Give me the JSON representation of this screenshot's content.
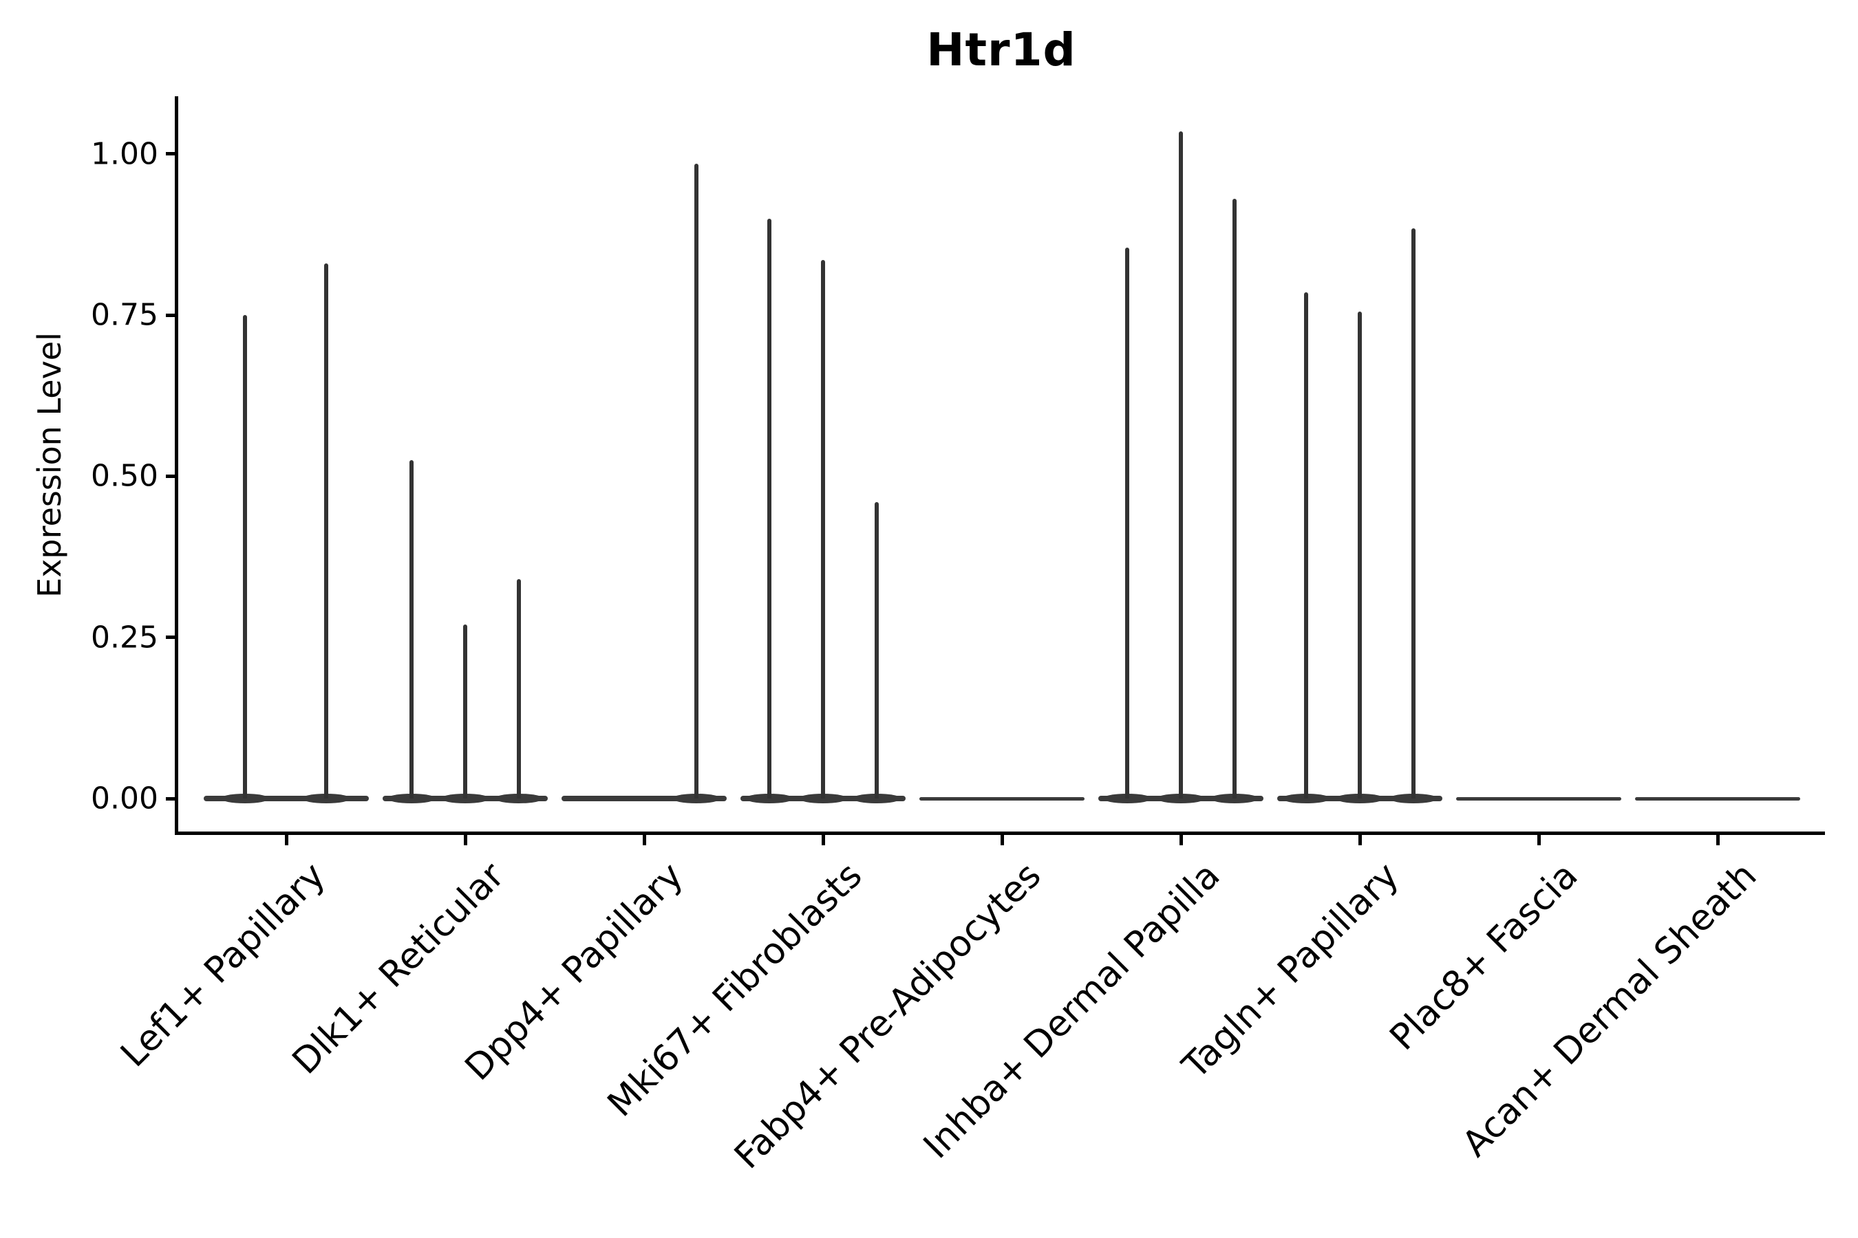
{
  "title": "Htr1d",
  "y_axis": {
    "label": "Expression Level",
    "ticks": [
      {
        "label": "1.00",
        "value": 1.0
      },
      {
        "label": "0.75",
        "value": 0.75
      },
      {
        "label": "0.50",
        "value": 0.5
      },
      {
        "label": "0.25",
        "value": 0.25
      },
      {
        "label": "0.00",
        "value": 0.0
      }
    ]
  },
  "chart_data": {
    "type": "violin",
    "title": "Htr1d",
    "xlabel": "",
    "ylabel": "Expression Level",
    "ylim": [
      0,
      1.08
    ],
    "yticks": [
      0,
      0.25,
      0.5,
      0.75,
      1.0
    ],
    "grid": false,
    "legend": "none",
    "violin_color": "#3a3a3a",
    "note": "Near-zero-width violins: wide flat base at expression 0 with thin density spikes reaching the listed peak expression values; offset = horizontal px offset of each spike from the category center",
    "categories": [
      "Lef1+ Papillary",
      "Dlk1+ Reticular",
      "Dpp4+ Papillary",
      "Mki67+ Fibroblasts",
      "Fabp4+ Pre-Adipocytes",
      "Inhba+ Dermal Papilla",
      "Tagln+ Papillary",
      "Plac8+ Fascia",
      "Acan+ Dermal Sheath"
    ],
    "series": [
      {
        "category": "Lef1+ Papillary",
        "spikes": [
          {
            "offset": -60,
            "value": 0.75
          },
          {
            "offset": 58,
            "value": 0.83
          }
        ]
      },
      {
        "category": "Dlk1+ Reticular",
        "spikes": [
          {
            "offset": -78,
            "value": 0.525
          },
          {
            "offset": 0,
            "value": 0.27
          },
          {
            "offset": 78,
            "value": 0.34
          }
        ]
      },
      {
        "category": "Dpp4+ Papillary",
        "spikes": [
          {
            "offset": 76,
            "value": 0.985
          }
        ]
      },
      {
        "category": "Mki67+ Fibroblasts",
        "spikes": [
          {
            "offset": -78,
            "value": 0.9
          },
          {
            "offset": 0,
            "value": 0.835
          },
          {
            "offset": 78,
            "value": 0.46
          }
        ]
      },
      {
        "category": "Fabp4+ Pre-Adipocytes",
        "spikes": []
      },
      {
        "category": "Inhba+ Dermal Papilla",
        "spikes": [
          {
            "offset": -78,
            "value": 0.855
          },
          {
            "offset": 0,
            "value": 1.035
          },
          {
            "offset": 78,
            "value": 0.93
          }
        ]
      },
      {
        "category": "Tagln+ Papillary",
        "spikes": [
          {
            "offset": -78,
            "value": 0.785
          },
          {
            "offset": 0,
            "value": 0.755
          },
          {
            "offset": 78,
            "value": 0.885
          }
        ]
      },
      {
        "category": "Plac8+ Fascia",
        "spikes": []
      },
      {
        "category": "Acan+ Dermal Sheath",
        "spikes": []
      }
    ]
  }
}
